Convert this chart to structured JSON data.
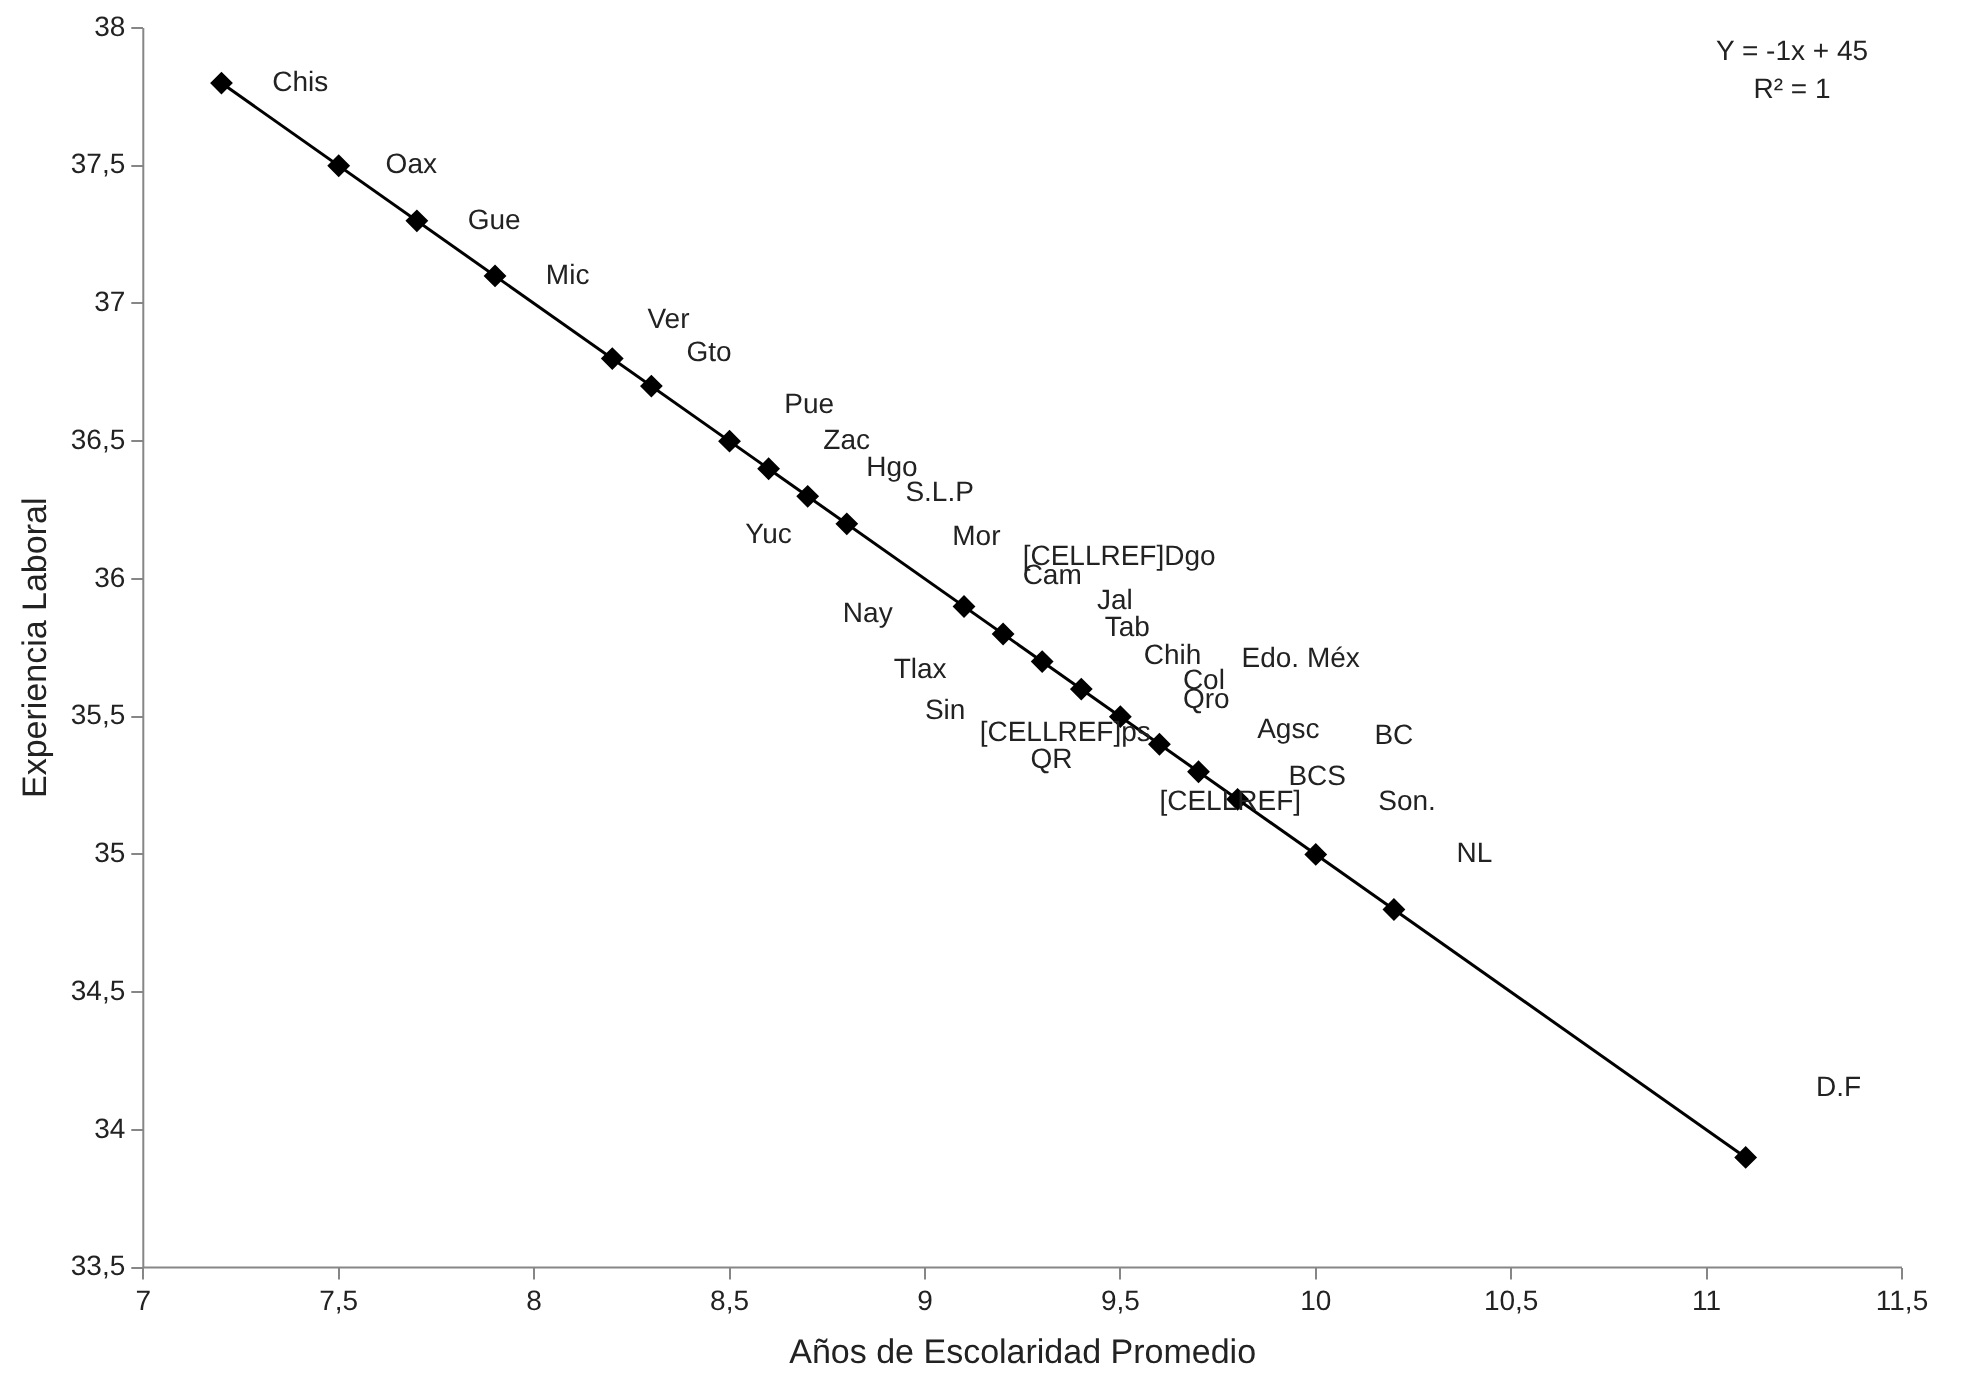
{
  "chart_data": {
    "type": "scatter",
    "xlabel": "Años de Escolaridad Promedio",
    "ylabel": "Experiencia Laboral",
    "xlim": [
      7,
      11.5
    ],
    "xticks": [
      7,
      {
        "value": 7.5,
        "label": "7,5"
      },
      8,
      {
        "value": 8.5,
        "label": "8,5"
      },
      9,
      {
        "value": 9.5,
        "label": "9,5"
      },
      10,
      {
        "value": 10.5,
        "label": "10,5"
      },
      11,
      {
        "value": 11.5,
        "label": "11,5"
      }
    ],
    "ylim": [
      33.5,
      38
    ],
    "yticks": [
      {
        "value": 33.5,
        "label": "33,5"
      },
      34,
      {
        "value": 34.5,
        "label": "34,5"
      },
      35,
      {
        "value": 35.5,
        "label": "35,5"
      },
      36,
      {
        "value": 36.5,
        "label": "36,5"
      },
      37,
      {
        "value": 37.5,
        "label": "37,5"
      },
      38
    ],
    "grid": false,
    "legend": false,
    "marker": "diamond",
    "series": [
      {
        "type": "line",
        "color": "#000000",
        "x": [
          7.2,
          11.1
        ],
        "values": [
          37.8,
          33.9
        ],
        "marker": "none",
        "line_style": "solid"
      },
      {
        "type": "scatter",
        "color": "#000000",
        "x": [
          7.2,
          7.5,
          7.7,
          7.9,
          8.2,
          8.3,
          8.5,
          8.6,
          8.7,
          8.8,
          9.1,
          9.2,
          9.3,
          9.4,
          9.5,
          9.6,
          9.7,
          9.8,
          10.0,
          10.2,
          11.1
        ],
        "values": [
          37.8,
          37.5,
          37.3,
          37.1,
          36.8,
          36.7,
          36.5,
          36.4,
          36.3,
          36.2,
          35.9,
          35.8,
          35.7,
          35.6,
          35.5,
          35.4,
          35.3,
          35.2,
          35.0,
          34.8,
          33.9
        ]
      }
    ],
    "annotations": [
      "Y = -1x + 45\nR² = 1",
      "Chis",
      "Oax",
      "Gue",
      "Mic",
      "Ver",
      "Gto",
      "Pue",
      "Zac",
      "Hgo",
      "S.L.P",
      "Yuc",
      "Mor",
      "[CELLREF]Dgo",
      "Cam",
      "Nay",
      "Jal",
      "Tab",
      "Tlax",
      "Chih",
      "Edo. Méx",
      "Col",
      "Qro",
      "Sin",
      "[CELLREF]ps",
      "Agsc",
      "BC",
      "QR",
      "BCS",
      "[CELLREF]",
      "Son.",
      "NL",
      "D.F"
    ]
  }
}
